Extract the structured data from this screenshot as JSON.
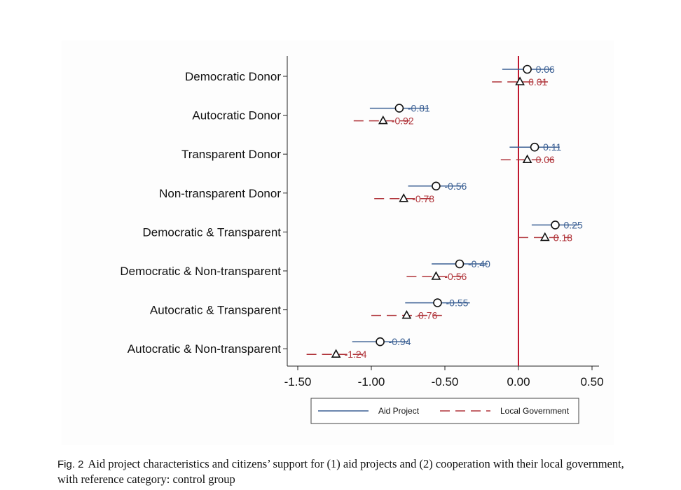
{
  "caption": {
    "fig_num": "Fig. 2",
    "text": "Aid project characteristics and citizens’ support for (1) aid projects and (2) cooperation with their local government, with reference category: control group"
  },
  "colors": {
    "aid_project": "#3a5f93",
    "local_government": "#b0343a",
    "zero_line": "#c0182f"
  },
  "chart_data": {
    "type": "coefficient-plot",
    "categories": [
      "Democratic Donor",
      "Autocratic Donor",
      "Transparent Donor",
      "Non-transparent Donor",
      "Democratic & Transparent",
      "Democratic & Non-transparent",
      "Autocratic & Transparent",
      "Autocratic & Non-transparent"
    ],
    "series": [
      {
        "name": "Aid Project",
        "marker": "circle",
        "line": "solid",
        "values": [
          0.06,
          -0.81,
          0.11,
          -0.56,
          0.25,
          -0.4,
          -0.55,
          -0.94
        ],
        "labels": [
          "0.06",
          "-0.81",
          "0.11",
          "-0.56",
          "0.25",
          "-0.40",
          "-0.55",
          "-0.94"
        ],
        "ci_low": [
          -0.11,
          -1.01,
          -0.06,
          -0.75,
          0.09,
          -0.59,
          -0.77,
          -1.13
        ],
        "ci_high": [
          0.23,
          -0.61,
          0.28,
          -0.37,
          0.41,
          -0.21,
          -0.33,
          -0.75
        ]
      },
      {
        "name": "Local Government",
        "marker": "triangle",
        "line": "dashed",
        "values": [
          0.01,
          -0.92,
          0.06,
          -0.78,
          0.18,
          -0.56,
          -0.76,
          -1.24
        ],
        "labels": [
          "0.01",
          "-0.92",
          "0.06",
          "-0.78",
          "0.18",
          "-0.56",
          "-0.76",
          "-1.24"
        ],
        "ci_low": [
          -0.18,
          -1.12,
          -0.12,
          -0.98,
          0.0,
          -0.76,
          -1.0,
          -1.44
        ],
        "ci_high": [
          0.2,
          -0.72,
          0.24,
          -0.58,
          0.36,
          -0.36,
          -0.52,
          -1.04
        ]
      }
    ],
    "x_ticks": [
      "-1.50",
      "-1.00",
      "-0.50",
      "0.00",
      "0.50"
    ],
    "x_tick_values": [
      -1.5,
      -1.0,
      -0.5,
      0.0,
      0.5
    ],
    "xlim": [
      -1.55,
      0.55
    ],
    "reference_line": 0.0,
    "xlabel": "",
    "ylabel": "",
    "legend_position": "bottom",
    "grid": false
  }
}
